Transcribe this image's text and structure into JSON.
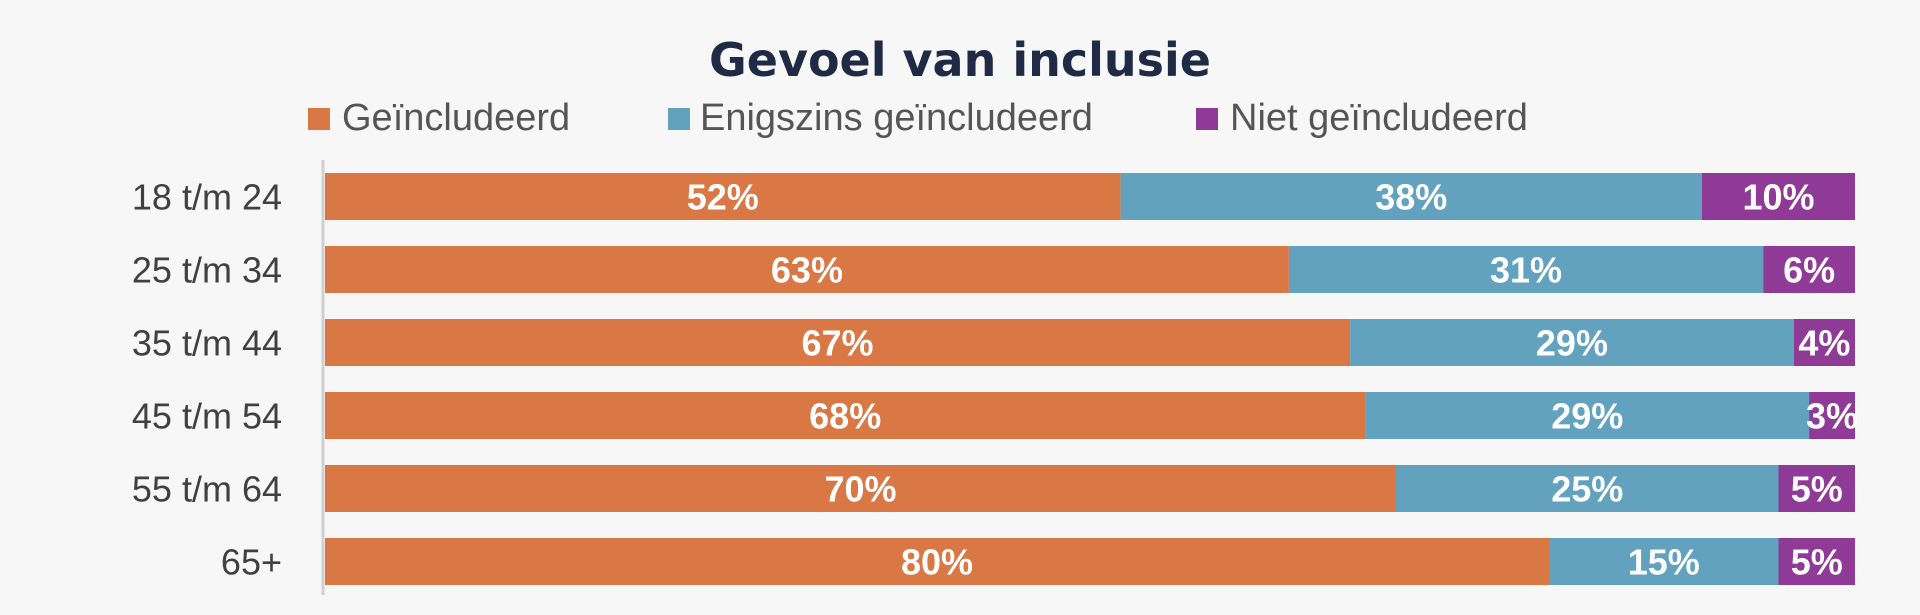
{
  "chart_data": {
    "type": "bar",
    "orientation": "horizontal",
    "stacked": true,
    "title": "Gevoel van inclusie",
    "legend_position": "top",
    "categories": [
      "18 t/m 24",
      "25 t/m 34",
      "35 t/m 44",
      "45 t/m 54",
      "55 t/m 64",
      "65+"
    ],
    "series": [
      {
        "name": "Geïncludeerd",
        "color": "#d97845",
        "values": [
          52,
          63,
          67,
          68,
          70,
          80
        ],
        "labels": [
          "52%",
          "63%",
          "67%",
          "68%",
          "70%",
          "80%"
        ]
      },
      {
        "name": "Enigszins geïncludeerd",
        "color": "#63a2bf",
        "values": [
          38,
          31,
          29,
          29,
          25,
          15
        ],
        "labels": [
          "38%",
          "31%",
          "29%",
          "29%",
          "25%",
          "15%"
        ]
      },
      {
        "name": "Niet geïncludeerd",
        "color": "#8e3a96",
        "values": [
          10,
          6,
          4,
          3,
          5,
          5
        ],
        "labels": [
          "10%",
          "6%",
          "4%",
          "3%",
          "5%",
          "5%"
        ]
      }
    ],
    "xlim": [
      0,
      100
    ],
    "grid": false
  }
}
